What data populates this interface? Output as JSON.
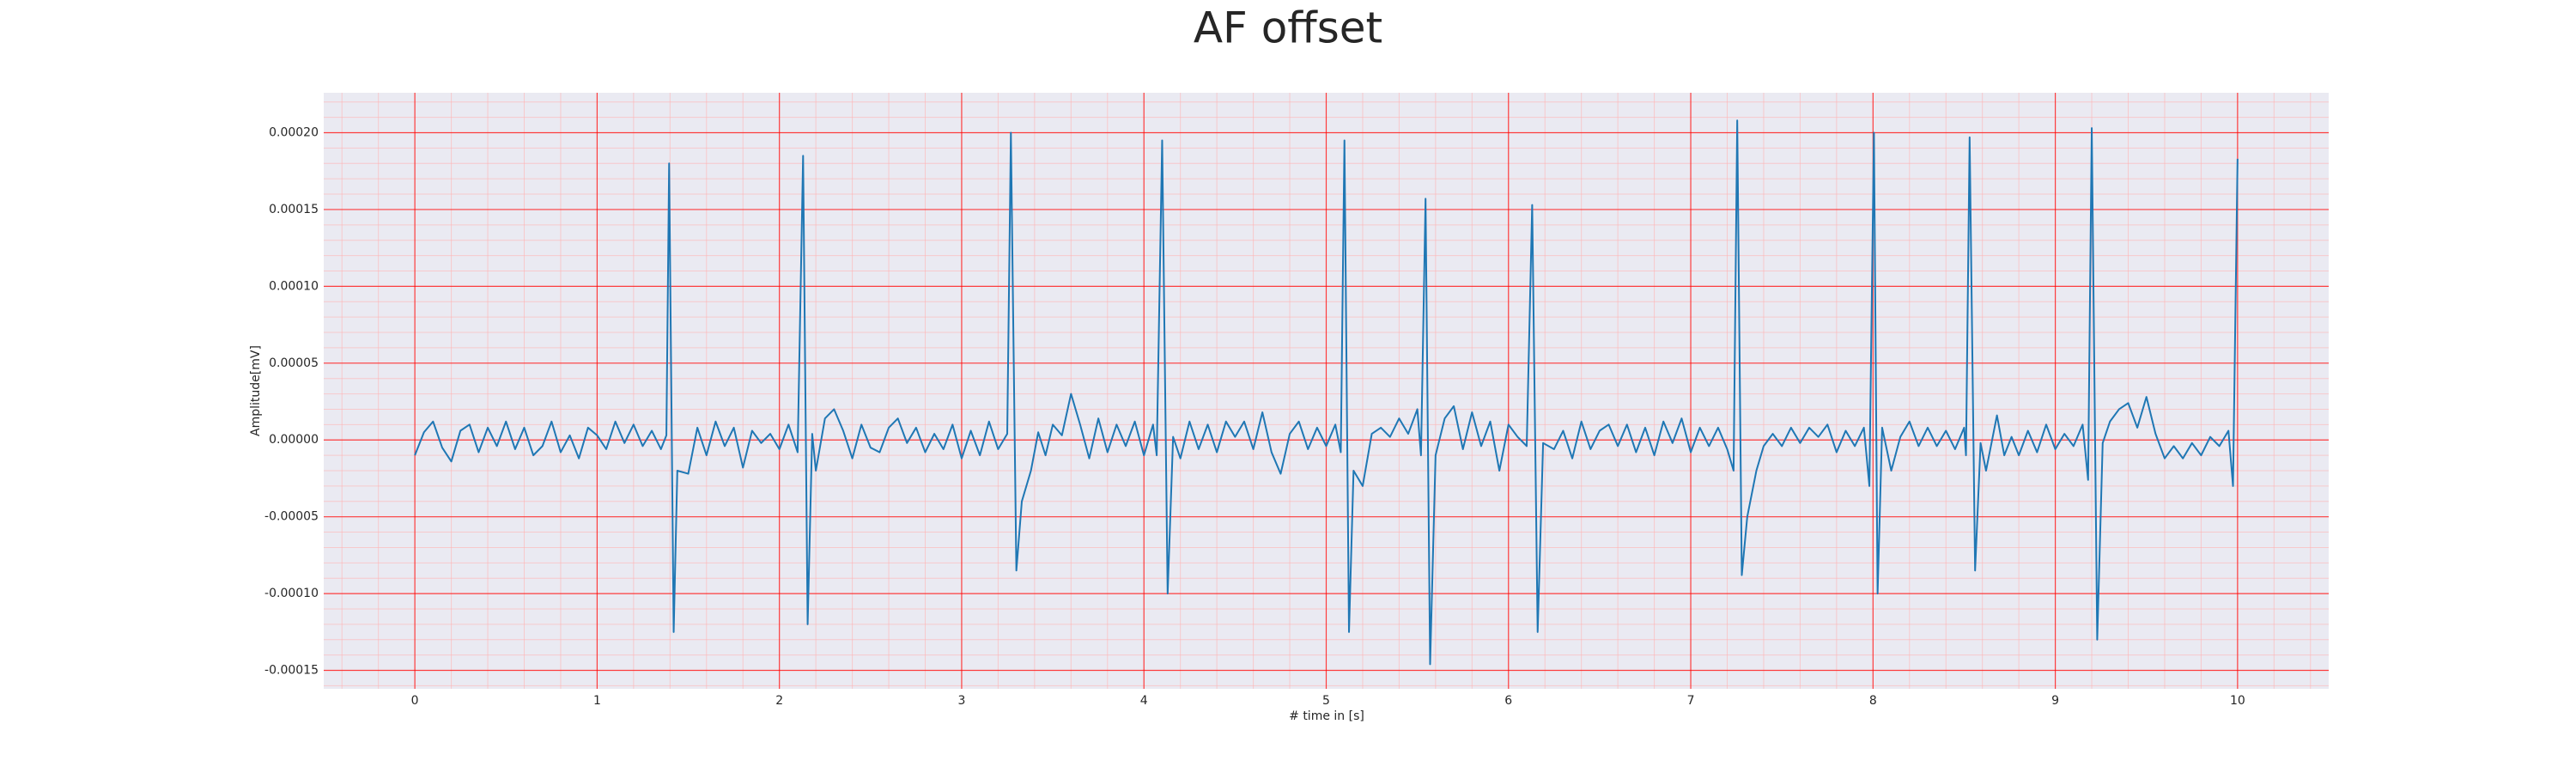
{
  "chart_data": {
    "type": "line",
    "title": "AF offset",
    "x_label": "# time in [s]",
    "y_label": "Amplitude[mV]",
    "color": "#1f77b4",
    "grid": true,
    "minor_grid": true,
    "xlim": [
      -0.5,
      10.5
    ],
    "xticks": [
      0,
      1,
      2,
      3,
      4,
      5,
      6,
      7,
      8,
      9,
      10
    ],
    "ylim": [
      -0.000162,
      0.000226
    ],
    "yticks": [
      {
        "value": -0.00015,
        "label": "-0.00015"
      },
      {
        "value": -0.0001,
        "label": "-0.00010"
      },
      {
        "value": -5e-05,
        "label": "-0.00005"
      },
      {
        "value": 0,
        "label": "0.00000"
      },
      {
        "value": 5e-05,
        "label": "0.00005"
      },
      {
        "value": 0.0001,
        "label": "0.00010"
      },
      {
        "value": 0.00015,
        "label": "0.00015"
      },
      {
        "value": 0.0002,
        "label": "0.00020"
      }
    ],
    "x": [
      0,
      0.05,
      0.1,
      0.15,
      0.2,
      0.25,
      0.3,
      0.35,
      0.4,
      0.45,
      0.5,
      0.55,
      0.6,
      0.65,
      0.7,
      0.75,
      0.8,
      0.85,
      0.9,
      0.95,
      1.0,
      1.05,
      1.1,
      1.15,
      1.2,
      1.25,
      1.3,
      1.35,
      1.38,
      1.395,
      1.42,
      1.44,
      1.5,
      1.55,
      1.6,
      1.65,
      1.7,
      1.75,
      1.8,
      1.85,
      1.9,
      1.95,
      2.0,
      2.05,
      2.1,
      2.13,
      2.155,
      2.18,
      2.2,
      2.25,
      2.3,
      2.35,
      2.4,
      2.45,
      2.5,
      2.55,
      2.6,
      2.65,
      2.7,
      2.75,
      2.8,
      2.85,
      2.9,
      2.95,
      3.0,
      3.05,
      3.1,
      3.15,
      3.2,
      3.25,
      3.27,
      3.3,
      3.33,
      3.38,
      3.42,
      3.46,
      3.5,
      3.55,
      3.6,
      3.65,
      3.7,
      3.75,
      3.8,
      3.85,
      3.9,
      3.95,
      4.0,
      4.05,
      4.07,
      4.1,
      4.13,
      4.16,
      4.2,
      4.25,
      4.3,
      4.35,
      4.4,
      4.45,
      4.5,
      4.55,
      4.6,
      4.65,
      4.7,
      4.75,
      4.8,
      4.85,
      4.9,
      4.95,
      5.0,
      5.05,
      5.08,
      5.1,
      5.125,
      5.15,
      5.2,
      5.25,
      5.3,
      5.35,
      5.4,
      5.45,
      5.5,
      5.52,
      5.545,
      5.57,
      5.6,
      5.65,
      5.7,
      5.75,
      5.8,
      5.85,
      5.9,
      5.95,
      6.0,
      6.05,
      6.1,
      6.13,
      6.16,
      6.19,
      6.25,
      6.3,
      6.35,
      6.4,
      6.45,
      6.5,
      6.55,
      6.6,
      6.65,
      6.7,
      6.75,
      6.8,
      6.85,
      6.9,
      6.95,
      7.0,
      7.05,
      7.1,
      7.15,
      7.2,
      7.235,
      7.255,
      7.28,
      7.31,
      7.36,
      7.4,
      7.45,
      7.5,
      7.55,
      7.6,
      7.65,
      7.7,
      7.75,
      7.8,
      7.85,
      7.9,
      7.95,
      7.98,
      8.005,
      8.025,
      8.05,
      8.1,
      8.15,
      8.2,
      8.25,
      8.3,
      8.35,
      8.4,
      8.45,
      8.5,
      8.51,
      8.53,
      8.56,
      8.59,
      8.62,
      8.68,
      8.72,
      8.76,
      8.8,
      8.85,
      8.9,
      8.95,
      9.0,
      9.05,
      9.1,
      9.15,
      9.18,
      9.2,
      9.23,
      9.26,
      9.3,
      9.35,
      9.4,
      9.45,
      9.5,
      9.55,
      9.6,
      9.65,
      9.7,
      9.75,
      9.8,
      9.85,
      9.9,
      9.95,
      9.975,
      10.0
    ],
    "values": [
      -1e-05,
      5e-06,
      1.2e-05,
      -5e-06,
      -1.4e-05,
      6e-06,
      1e-05,
      -8e-06,
      8e-06,
      -4e-06,
      1.2e-05,
      -6e-06,
      8e-06,
      -1e-05,
      -4e-06,
      1.2e-05,
      -8e-06,
      3e-06,
      -1.2e-05,
      8e-06,
      3e-06,
      -6e-06,
      1.2e-05,
      -2e-06,
      1e-05,
      -4e-06,
      6e-06,
      -6e-06,
      3e-06,
      0.00018,
      -0.000125,
      -2e-05,
      -2.2e-05,
      8e-06,
      -1e-05,
      1.2e-05,
      -4e-06,
      8e-06,
      -1.8e-05,
      6e-06,
      -2e-06,
      4e-06,
      -6e-06,
      1e-05,
      -8e-06,
      0.000185,
      -0.00012,
      4e-06,
      -2e-05,
      1.4e-05,
      2e-05,
      6e-06,
      -1.2e-05,
      1e-05,
      -5e-06,
      -8e-06,
      8e-06,
      1.4e-05,
      -2e-06,
      8e-06,
      -8e-06,
      4e-06,
      -6e-06,
      1e-05,
      -1.2e-05,
      6e-06,
      -1e-05,
      1.2e-05,
      -6e-06,
      4e-06,
      0.0002,
      -8.5e-05,
      -4e-05,
      -2e-05,
      5e-06,
      -1e-05,
      1e-05,
      3e-06,
      3e-05,
      1e-05,
      -1.2e-05,
      1.4e-05,
      -8e-06,
      1e-05,
      -4e-06,
      1.2e-05,
      -1e-05,
      1e-05,
      -1e-05,
      0.000195,
      -0.0001,
      2e-06,
      -1.2e-05,
      1.2e-05,
      -6e-06,
      1e-05,
      -8e-06,
      1.2e-05,
      2e-06,
      1.2e-05,
      -6e-06,
      1.8e-05,
      -8e-06,
      -2.2e-05,
      4e-06,
      1.2e-05,
      -6e-06,
      8e-06,
      -4e-06,
      1e-05,
      -8e-06,
      0.000195,
      -0.000125,
      -2e-05,
      -3e-05,
      4e-06,
      8e-06,
      2e-06,
      1.4e-05,
      4e-06,
      2e-05,
      -1e-05,
      0.000157,
      -0.000146,
      -1e-05,
      1.4e-05,
      2.2e-05,
      -6e-06,
      1.8e-05,
      -4e-06,
      1.2e-05,
      -2e-05,
      1e-05,
      2e-06,
      -4e-06,
      0.000153,
      -0.000125,
      -2e-06,
      -6e-06,
      6e-06,
      -1.2e-05,
      1.2e-05,
      -6e-06,
      6e-06,
      1e-05,
      -4e-06,
      1e-05,
      -8e-06,
      8e-06,
      -1e-05,
      1.2e-05,
      -2e-06,
      1.4e-05,
      -8e-06,
      8e-06,
      -4e-06,
      8e-06,
      -6e-06,
      -2e-05,
      0.000208,
      -8.8e-05,
      -5e-05,
      -2e-05,
      -4e-06,
      4e-06,
      -4e-06,
      8e-06,
      -2e-06,
      8e-06,
      2e-06,
      1e-05,
      -8e-06,
      6e-06,
      -4e-06,
      8e-06,
      -3e-05,
      0.0002,
      -0.0001,
      8e-06,
      -2e-05,
      2e-06,
      1.2e-05,
      -4e-06,
      8e-06,
      -4e-06,
      6e-06,
      -6e-06,
      8e-06,
      -1e-05,
      0.000197,
      -8.5e-05,
      -2e-06,
      -2e-05,
      1.6e-05,
      -1e-05,
      2e-06,
      -1e-05,
      6e-06,
      -8e-06,
      1e-05,
      -6e-06,
      4e-06,
      -4e-06,
      1e-05,
      -2.6e-05,
      0.000203,
      -0.00013,
      -2e-06,
      1.2e-05,
      2e-05,
      2.4e-05,
      8e-06,
      2.8e-05,
      4e-06,
      -1.2e-05,
      -4e-06,
      -1.2e-05,
      -2e-06,
      -1e-05,
      2e-06,
      -4e-06,
      6e-06,
      -3e-05,
      0.000183
    ]
  }
}
